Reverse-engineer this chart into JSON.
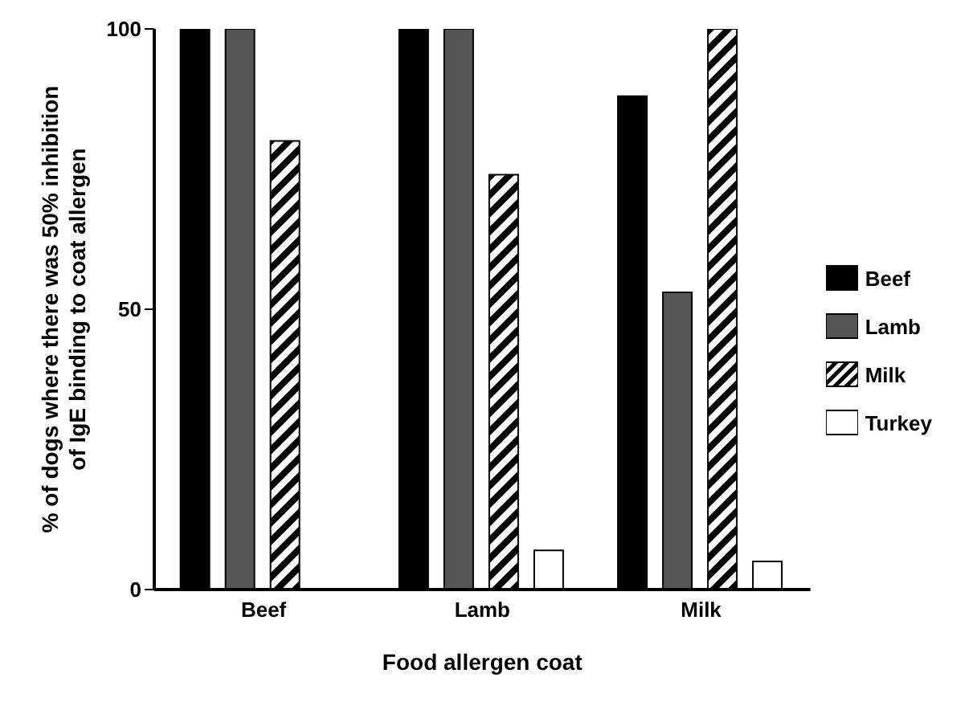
{
  "chart_data": {
    "type": "bar",
    "xlabel": "Food allergen coat",
    "ylabel": "% of dogs where there was 50% inhibition\nof IgE binding to coat allergen",
    "categories": [
      "Beef",
      "Lamb",
      "Milk"
    ],
    "series": [
      {
        "name": "Beef",
        "color": "#000000",
        "values": [
          100,
          100,
          88
        ]
      },
      {
        "name": "Lamb",
        "color": "#555555",
        "values": [
          100,
          100,
          53
        ]
      },
      {
        "name": "Milk",
        "color": "#000000",
        "values": [
          80,
          74,
          100
        ]
      },
      {
        "name": "Turkey",
        "color": "#ffffff",
        "values": [
          null,
          7,
          5
        ]
      }
    ],
    "ylim": [
      0,
      100
    ],
    "yticks": [
      0,
      50,
      100
    ],
    "grid": false,
    "legend": "right"
  }
}
